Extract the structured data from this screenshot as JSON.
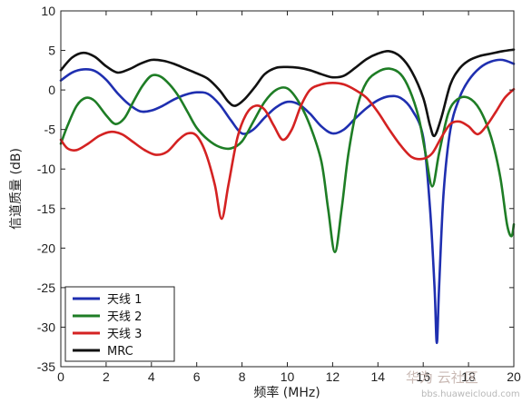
{
  "chart_data": {
    "type": "line",
    "xlabel": "频率 (MHz)",
    "ylabel": "信道质量 (dB)",
    "xlim": [
      0,
      20
    ],
    "ylim": [
      -35,
      10
    ],
    "xticks": [
      0,
      2,
      4,
      6,
      8,
      10,
      12,
      14,
      16,
      18,
      20
    ],
    "yticks": [
      10,
      5,
      0,
      -5,
      -10,
      -15,
      -20,
      -25,
      -30,
      -35
    ],
    "grid": false,
    "legend_position": "bottom-left",
    "series": [
      {
        "name": "天线 1",
        "color": "#1f2fb0",
        "points": [
          [
            0,
            1.2
          ],
          [
            0.5,
            2.2
          ],
          [
            1,
            2.6
          ],
          [
            1.5,
            2.4
          ],
          [
            2,
            1.3
          ],
          [
            2.5,
            -0.4
          ],
          [
            3,
            -1.8
          ],
          [
            3.5,
            -2.7
          ],
          [
            4,
            -2.6
          ],
          [
            4.5,
            -2
          ],
          [
            5,
            -1.2
          ],
          [
            5.5,
            -0.6
          ],
          [
            6,
            -0.3
          ],
          [
            6.5,
            -0.5
          ],
          [
            7,
            -1.8
          ],
          [
            7.5,
            -3.8
          ],
          [
            8,
            -5.5
          ],
          [
            8.5,
            -5
          ],
          [
            9,
            -3.5
          ],
          [
            9.5,
            -2.2
          ],
          [
            10,
            -1.5
          ],
          [
            10.5,
            -1.8
          ],
          [
            11,
            -3
          ],
          [
            11.5,
            -4.6
          ],
          [
            12,
            -5.5
          ],
          [
            12.5,
            -5
          ],
          [
            13,
            -3.6
          ],
          [
            13.5,
            -2.3
          ],
          [
            14,
            -1.3
          ],
          [
            14.5,
            -0.8
          ],
          [
            15,
            -1
          ],
          [
            15.5,
            -2.5
          ],
          [
            16,
            -6
          ],
          [
            16.3,
            -15
          ],
          [
            16.5,
            -25
          ],
          [
            16.6,
            -32
          ],
          [
            16.7,
            -25
          ],
          [
            16.9,
            -13
          ],
          [
            17.2,
            -5
          ],
          [
            17.6,
            -1
          ],
          [
            18,
            1.2
          ],
          [
            18.5,
            2.8
          ],
          [
            19,
            3.6
          ],
          [
            19.5,
            3.8
          ],
          [
            20,
            3.3
          ]
        ]
      },
      {
        "name": "天线 2",
        "color": "#1e7d25",
        "points": [
          [
            0,
            -6.8
          ],
          [
            0.3,
            -4.5
          ],
          [
            0.7,
            -2
          ],
          [
            1.1,
            -1
          ],
          [
            1.5,
            -1.4
          ],
          [
            2,
            -3.2
          ],
          [
            2.4,
            -4.3
          ],
          [
            2.8,
            -3.6
          ],
          [
            3.2,
            -1.5
          ],
          [
            3.6,
            0.5
          ],
          [
            4,
            1.8
          ],
          [
            4.4,
            1.7
          ],
          [
            4.8,
            0.7
          ],
          [
            5.2,
            -0.8
          ],
          [
            5.6,
            -2.8
          ],
          [
            6,
            -4.8
          ],
          [
            6.5,
            -6.3
          ],
          [
            7,
            -7.2
          ],
          [
            7.5,
            -7.4
          ],
          [
            8,
            -6.5
          ],
          [
            8.5,
            -4
          ],
          [
            9,
            -1.5
          ],
          [
            9.5,
            0
          ],
          [
            10,
            0.2
          ],
          [
            10.5,
            -1.5
          ],
          [
            11,
            -4.5
          ],
          [
            11.5,
            -9
          ],
          [
            11.8,
            -15
          ],
          [
            12.1,
            -20.5
          ],
          [
            12.4,
            -15
          ],
          [
            12.7,
            -8
          ],
          [
            13.1,
            -2
          ],
          [
            13.5,
            1
          ],
          [
            14,
            2.3
          ],
          [
            14.5,
            2.7
          ],
          [
            15,
            2
          ],
          [
            15.4,
            0
          ],
          [
            15.8,
            -3.5
          ],
          [
            16.1,
            -8
          ],
          [
            16.4,
            -12.2
          ],
          [
            16.7,
            -8
          ],
          [
            17.1,
            -3
          ],
          [
            17.5,
            -1.2
          ],
          [
            18,
            -1
          ],
          [
            18.5,
            -2.5
          ],
          [
            19,
            -6
          ],
          [
            19.4,
            -11
          ],
          [
            19.7,
            -17
          ],
          [
            19.9,
            -18.5
          ],
          [
            20,
            -17
          ]
        ]
      },
      {
        "name": "天线 3",
        "color": "#d42222",
        "points": [
          [
            0,
            -6.3
          ],
          [
            0.3,
            -7.4
          ],
          [
            0.7,
            -7.6
          ],
          [
            1.2,
            -6.8
          ],
          [
            1.7,
            -5.8
          ],
          [
            2.2,
            -5.3
          ],
          [
            2.7,
            -5.6
          ],
          [
            3.2,
            -6.6
          ],
          [
            3.7,
            -7.6
          ],
          [
            4.2,
            -8.2
          ],
          [
            4.7,
            -7.8
          ],
          [
            5.2,
            -6.3
          ],
          [
            5.6,
            -5.5
          ],
          [
            6,
            -5.8
          ],
          [
            6.4,
            -8
          ],
          [
            6.8,
            -12
          ],
          [
            7.1,
            -16.3
          ],
          [
            7.4,
            -12
          ],
          [
            7.8,
            -6
          ],
          [
            8.2,
            -3
          ],
          [
            8.6,
            -2
          ],
          [
            9,
            -2.5
          ],
          [
            9.4,
            -4.5
          ],
          [
            9.8,
            -6.3
          ],
          [
            10.2,
            -5
          ],
          [
            10.6,
            -2
          ],
          [
            11,
            0
          ],
          [
            11.5,
            0.7
          ],
          [
            12,
            0.9
          ],
          [
            12.5,
            0.7
          ],
          [
            13,
            0
          ],
          [
            13.5,
            -1
          ],
          [
            14,
            -2.8
          ],
          [
            14.5,
            -5
          ],
          [
            15,
            -7
          ],
          [
            15.5,
            -8.5
          ],
          [
            16,
            -8.7
          ],
          [
            16.4,
            -8
          ],
          [
            16.8,
            -6
          ],
          [
            17.2,
            -4.3
          ],
          [
            17.6,
            -4
          ],
          [
            18,
            -4.6
          ],
          [
            18.4,
            -5.6
          ],
          [
            18.8,
            -4.5
          ],
          [
            19.2,
            -2.8
          ],
          [
            19.6,
            -1
          ],
          [
            20,
            0.1
          ]
        ]
      },
      {
        "name": "MRC",
        "color": "#111111",
        "points": [
          [
            0,
            2.5
          ],
          [
            0.5,
            4.1
          ],
          [
            1,
            4.7
          ],
          [
            1.5,
            4.2
          ],
          [
            2,
            3
          ],
          [
            2.5,
            2.2
          ],
          [
            3,
            2.6
          ],
          [
            3.5,
            3.3
          ],
          [
            4,
            3.8
          ],
          [
            4.5,
            3.7
          ],
          [
            5,
            3.3
          ],
          [
            5.5,
            2.7
          ],
          [
            6,
            2.1
          ],
          [
            6.5,
            1.4
          ],
          [
            7,
            0
          ],
          [
            7.4,
            -1.5
          ],
          [
            7.7,
            -2
          ],
          [
            8.1,
            -1.2
          ],
          [
            8.6,
            0.5
          ],
          [
            9,
            2
          ],
          [
            9.5,
            2.8
          ],
          [
            10,
            2.9
          ],
          [
            10.5,
            2.8
          ],
          [
            11,
            2.5
          ],
          [
            11.5,
            2
          ],
          [
            12,
            1.6
          ],
          [
            12.5,
            1.8
          ],
          [
            13,
            2.8
          ],
          [
            13.5,
            3.9
          ],
          [
            14,
            4.6
          ],
          [
            14.5,
            4.9
          ],
          [
            15,
            4.2
          ],
          [
            15.5,
            2.3
          ],
          [
            16,
            -1
          ],
          [
            16.3,
            -4.5
          ],
          [
            16.5,
            -5.8
          ],
          [
            16.8,
            -3.5
          ],
          [
            17.2,
            0.7
          ],
          [
            17.6,
            2.7
          ],
          [
            18,
            3.7
          ],
          [
            18.5,
            4.3
          ],
          [
            19,
            4.6
          ],
          [
            19.5,
            4.9
          ],
          [
            20,
            5.1
          ]
        ]
      }
    ]
  },
  "watermark": {
    "main": "华为 云社区",
    "sub": "bbs.huaweicloud.com"
  }
}
